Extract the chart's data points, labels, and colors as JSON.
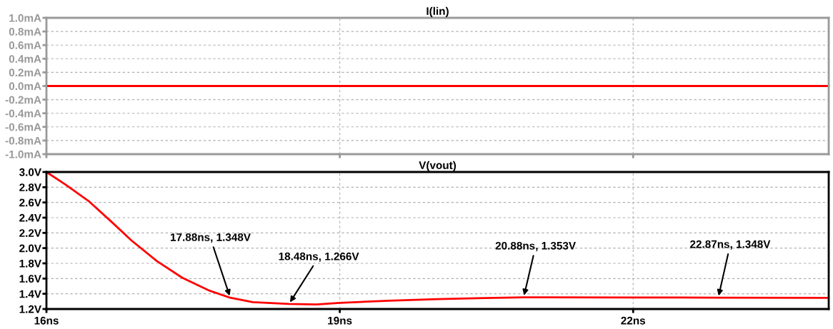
{
  "chart_data": [
    {
      "type": "line",
      "title": "I(lin)",
      "x": [
        16,
        24
      ],
      "xlim": [
        16,
        24
      ],
      "xticks": [
        {
          "value": 16,
          "label": null
        },
        {
          "value": 19,
          "label": null
        },
        {
          "value": 22,
          "label": null
        }
      ],
      "ylim": [
        -1.0,
        1.0
      ],
      "yticks": [
        {
          "value": -1.0,
          "label": "-1.0mA"
        },
        {
          "value": -0.8,
          "label": "-0.8mA"
        },
        {
          "value": -0.6,
          "label": "-0.6mA"
        },
        {
          "value": -0.4,
          "label": "-0.4mA"
        },
        {
          "value": -0.2,
          "label": "-0.2mA"
        },
        {
          "value": 0.0,
          "label": "0.0mA"
        },
        {
          "value": 0.2,
          "label": "0.2mA"
        },
        {
          "value": 0.4,
          "label": "0.4mA"
        },
        {
          "value": 0.6,
          "label": "0.6mA"
        },
        {
          "value": 0.8,
          "label": "0.8mA"
        },
        {
          "value": 1.0,
          "label": "1.0mA"
        }
      ],
      "tick_labels": "y",
      "grid": true,
      "line_style": "solid",
      "series": [
        {
          "color": "#ff0000",
          "values": [
            0,
            0
          ]
        }
      ]
    },
    {
      "type": "line",
      "title": "V(vout)",
      "xlim": [
        16,
        24
      ],
      "xticks": [
        {
          "value": 16,
          "label": "16ns"
        },
        {
          "value": 19,
          "label": "19ns"
        },
        {
          "value": 22,
          "label": "22ns"
        }
      ],
      "ylim": [
        1.2,
        3.0
      ],
      "yticks": [
        {
          "value": 1.2,
          "label": "1.2V"
        },
        {
          "value": 1.4,
          "label": "1.4V"
        },
        {
          "value": 1.6,
          "label": "1.6V"
        },
        {
          "value": 1.8,
          "label": "1.8V"
        },
        {
          "value": 2.0,
          "label": "2.0V"
        },
        {
          "value": 2.2,
          "label": "2.2V"
        },
        {
          "value": 2.4,
          "label": "2.4V"
        },
        {
          "value": 2.6,
          "label": "2.6V"
        },
        {
          "value": 2.8,
          "label": "2.8V"
        },
        {
          "value": 3.0,
          "label": "3.0V"
        }
      ],
      "grid": true,
      "line_style": "solid",
      "x": [
        16,
        16.2,
        16.43,
        16.67,
        16.87,
        17.13,
        17.39,
        17.67,
        17.88,
        18.11,
        18.48,
        18.76,
        19.0,
        19.5,
        20.0,
        20.48,
        20.88,
        22.0,
        22.5,
        22.87,
        24
      ],
      "series": [
        {
          "color": "#ff0000",
          "values": [
            3.0,
            2.83,
            2.62,
            2.34,
            2.1,
            1.83,
            1.61,
            1.44,
            1.348,
            1.29,
            1.266,
            1.26,
            1.28,
            1.31,
            1.33,
            1.345,
            1.353,
            1.352,
            1.351,
            1.348,
            1.347
          ]
        }
      ],
      "annotations": [
        {
          "text": "17.88ns, 1.348V",
          "x": 17.88,
          "y": 1.348
        },
        {
          "text": "18.48ns, 1.266V",
          "x": 18.48,
          "y": 1.266
        },
        {
          "text": "20.88ns, 1.353V",
          "x": 20.88,
          "y": 1.353
        },
        {
          "text": "22.87ns, 1.348V",
          "x": 22.87,
          "y": 1.348
        }
      ]
    }
  ]
}
